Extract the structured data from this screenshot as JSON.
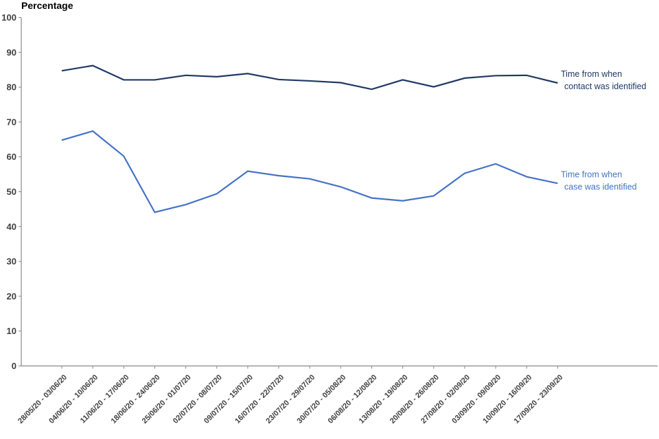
{
  "chart_data": {
    "type": "line",
    "title": "Percentage",
    "xlabel": "",
    "ylabel": "Percentage",
    "ylim": [
      0,
      100
    ],
    "y_ticks": [
      0,
      10,
      20,
      30,
      40,
      50,
      60,
      70,
      80,
      90,
      100
    ],
    "grid": false,
    "legend_position": "right-of-line-end",
    "categories": [
      "28/05/20 - 03/06/20",
      "04/06/20 - 10/06/20",
      "11/06/20 - 17/06/20",
      "18/06/20 - 24/06/20",
      "25/06/20 - 01/07/20",
      "02/07/20 - 08/07/20",
      "09/07/20 - 15/07/20",
      "16/07/20 - 22/07/20",
      "23/07/20 - 29/07/20",
      "30/07/20 - 05/08/20",
      "06/08/20 - 12/08/20",
      "13/08/20 - 19/08/20",
      "20/08/20 - 26/08/20",
      "27/08/20 - 02/09/20",
      "03/09/20 - 09/09/20",
      "10/09/20 - 16/09/20",
      "17/09/20 - 23/09/20"
    ],
    "series": [
      {
        "name": "Time from when contact was identified",
        "label_lines": [
          "Time from when",
          "contact was identified"
        ],
        "color": "#1F3864",
        "values": [
          84.7,
          86.2,
          82.1,
          82.1,
          83.4,
          83.0,
          83.9,
          82.2,
          81.8,
          81.3,
          79.4,
          82.1,
          80.1,
          82.6,
          83.3,
          83.4,
          81.2
        ]
      },
      {
        "name": "Time from when case was identified",
        "label_lines": [
          "Time from when",
          "case was identified"
        ],
        "color": "#4472C4",
        "values": [
          64.8,
          67.4,
          60.2,
          44.1,
          46.3,
          49.4,
          55.9,
          54.6,
          53.7,
          51.4,
          48.2,
          47.4,
          48.8,
          55.3,
          58.0,
          54.3,
          52.4
        ]
      }
    ],
    "axis_color": "#898989",
    "tick_label_color": "#3F3F3F"
  }
}
